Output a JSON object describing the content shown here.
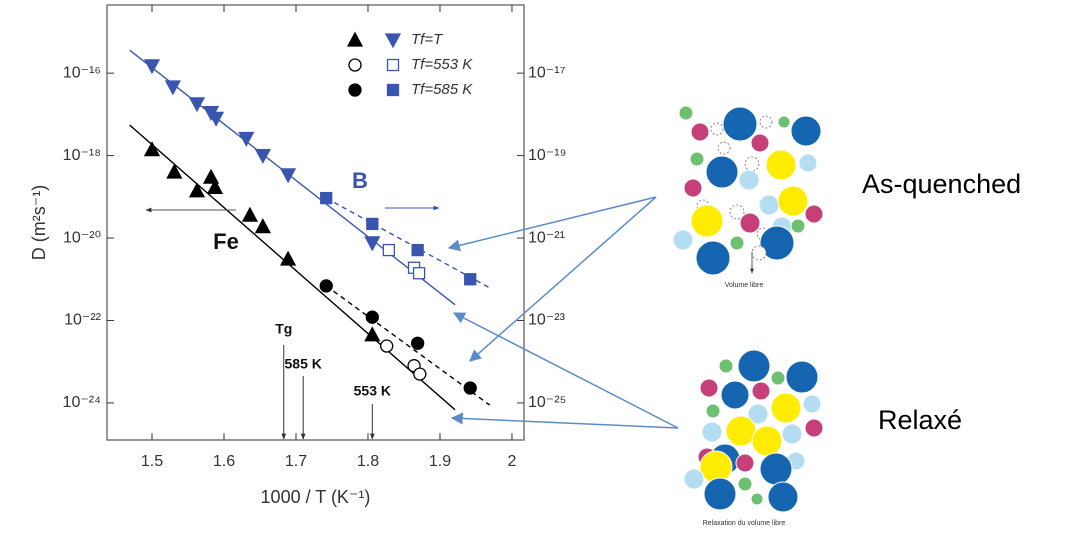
{
  "chart_data": {
    "type": "scatter",
    "x_label": "1000 / T (K⁻¹)",
    "y_label": "D (m²s⁻¹)",
    "xlim": [
      1.4375,
      2.0167
    ],
    "xticks": [
      1.5,
      1.6,
      1.7,
      1.8,
      1.9,
      2.0
    ],
    "log_y": true,
    "ylim": [
      4.5e-15,
      1.26e-25
    ],
    "yticks": [
      {
        "value": 1e-16,
        "label": "10⁻¹⁶"
      },
      {
        "value": 1e-18,
        "label": "10⁻¹⁸"
      },
      {
        "value": 1e-20,
        "label": "10⁻²⁰"
      },
      {
        "value": 1e-22,
        "label": "10⁻²²"
      },
      {
        "value": 1e-24,
        "label": "10⁻²⁴"
      }
    ],
    "y2lim": [
      4.5e-16,
      1.26e-26
    ],
    "y2ticks": [
      {
        "value": 1e-17,
        "label": "10⁻¹⁷"
      },
      {
        "value": 1e-19,
        "label": "10⁻¹⁹"
      },
      {
        "value": 1e-21,
        "label": "10⁻²¹"
      },
      {
        "value": 1e-23,
        "label": "10⁻²³"
      },
      {
        "value": 1e-25,
        "label": "10⁻²⁵"
      }
    ],
    "legend": "top-right",
    "series": [
      {
        "name": "Tf=T",
        "color": "#000000",
        "marker": "tri-up",
        "filled": true,
        "axis": "y",
        "x": [
          1.5,
          1.531,
          1.5625,
          1.582,
          1.5875,
          1.636,
          1.654,
          1.689,
          1.806
        ],
        "values": [
          1.4e-18,
          4e-19,
          1.4e-19,
          3e-19,
          1.7e-19,
          3.6e-20,
          1.9e-20,
          3.1e-21,
          4.5e-23
        ]
      },
      {
        "name": "Tf=T",
        "color": "#3a55b0",
        "marker": "tri-down",
        "filled": true,
        "axis": "y2",
        "x": [
          1.5,
          1.529,
          1.5625,
          1.582,
          1.589,
          1.631,
          1.654,
          1.689,
          1.806
        ],
        "values": [
          1.5e-17,
          4.6e-18,
          1.8e-18,
          1.1e-18,
          8e-19,
          2.6e-19,
          1e-19,
          3.4e-20,
          7.6e-22
        ]
      },
      {
        "name": "Tf=553 K",
        "color": "#000000",
        "marker": "circle",
        "filled": false,
        "axis": "y",
        "x": [
          1.826,
          1.864,
          1.872
        ],
        "values": [
          2.4e-23,
          8e-24,
          5e-24
        ]
      },
      {
        "name": "Tf=553 K",
        "color": "#3a55b0",
        "marker": "square",
        "filled": false,
        "axis": "y2",
        "x": [
          1.829,
          1.864,
          1.871
        ],
        "values": [
          5.1e-22,
          1.9e-22,
          1.4e-22
        ]
      },
      {
        "name": "Tf=585 K",
        "color": "#000000",
        "marker": "circle",
        "filled": true,
        "axis": "y",
        "x": [
          1.742,
          1.806,
          1.869,
          1.942
        ],
        "values": [
          6.9e-22,
          1.2e-22,
          2.8e-23,
          2.3e-24
        ]
      },
      {
        "name": "Tf=585 K",
        "color": "#3a55b0",
        "marker": "square",
        "filled": true,
        "axis": "y2",
        "x": [
          1.742,
          1.806,
          1.869,
          1.942
        ],
        "values": [
          9.3e-21,
          2.2e-21,
          5.1e-22,
          1e-22
        ]
      }
    ],
    "fits": [
      {
        "color": "#000000",
        "dash": false,
        "axis": "y",
        "x": [
          1.469,
          1.921
        ],
        "values": [
          5.5e-18,
          6.8e-25
        ]
      },
      {
        "color": "#000000",
        "dash": true,
        "axis": "y",
        "x": [
          1.742,
          1.969
        ],
        "values": [
          6.9e-22,
          8.9e-25
        ]
      },
      {
        "color": "#3a55b0",
        "dash": false,
        "axis": "y2",
        "x": [
          1.469,
          1.921
        ],
        "values": [
          3.6e-17,
          2.4e-23
        ]
      },
      {
        "color": "#3a55b0",
        "dash": true,
        "axis": "y2",
        "x": [
          1.742,
          1.969
        ],
        "values": [
          9.3e-21,
          6.2e-23
        ]
      }
    ],
    "temperature_marks": [
      {
        "label": "Tg",
        "x": 1.683
      },
      {
        "label": "585 K",
        "x": 1.71
      },
      {
        "label": "553 K",
        "x": 1.806
      }
    ],
    "annotations": {
      "left_series": "Fe",
      "right_series": "B"
    }
  },
  "diagrams": {
    "as_quenched": {
      "title": "As-quenched",
      "caption": "Volume libre"
    },
    "relaxed": {
      "title": "Relaxé",
      "caption": "Relaxation du volume libre"
    }
  }
}
